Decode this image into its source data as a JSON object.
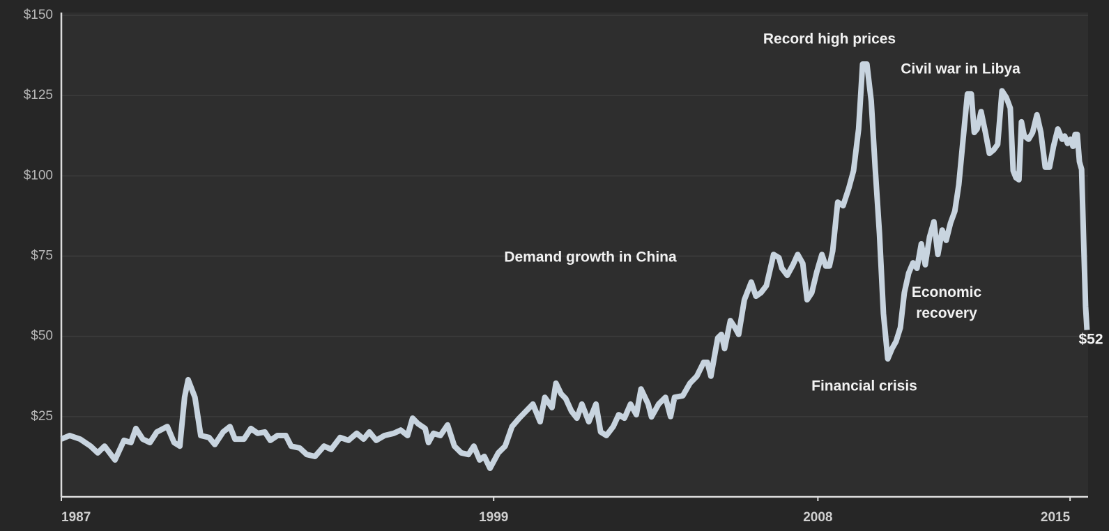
{
  "chart_data": {
    "type": "line",
    "x": [
      1987.0,
      1987.23,
      1987.52,
      1987.81,
      1988.01,
      1988.2,
      1988.49,
      1988.74,
      1988.93,
      1989.07,
      1989.26,
      1989.46,
      1989.65,
      1989.94,
      1990.13,
      1990.29,
      1990.42,
      1990.52,
      1990.71,
      1990.87,
      1991.1,
      1991.26,
      1991.49,
      1991.68,
      1991.82,
      1992.07,
      1992.26,
      1992.45,
      1992.65,
      1992.8,
      1993.0,
      1993.23,
      1993.38,
      1993.62,
      1993.81,
      1994.04,
      1994.29,
      1994.49,
      1994.74,
      1994.97,
      1995.2,
      1995.39,
      1995.55,
      1995.74,
      1995.97,
      1996.23,
      1996.42,
      1996.61,
      1996.75,
      1996.9,
      1997.1,
      1997.19,
      1997.33,
      1997.52,
      1997.72,
      1997.91,
      1998.1,
      1998.3,
      1998.45,
      1998.61,
      1998.74,
      1998.9,
      1999.13,
      1999.32,
      1999.51,
      1999.71,
      1999.9,
      2000.09,
      2000.29,
      2000.42,
      2000.62,
      2000.73,
      2000.87,
      2001.0,
      2001.16,
      2001.31,
      2001.45,
      2001.64,
      2001.84,
      2001.97,
      2002.13,
      2002.32,
      2002.47,
      2002.63,
      2002.8,
      2002.96,
      2003.09,
      2003.29,
      2003.38,
      2003.58,
      2003.77,
      2003.91,
      2004.02,
      2004.25,
      2004.45,
      2004.64,
      2004.83,
      2004.93,
      2005.03,
      2005.22,
      2005.32,
      2005.41,
      2005.57,
      2005.7,
      2005.8,
      2005.96,
      2006.15,
      2006.28,
      2006.42,
      2006.57,
      2006.77,
      2006.92,
      2007.0,
      2007.15,
      2007.31,
      2007.44,
      2007.58,
      2007.7,
      2007.83,
      2007.97,
      2008.11,
      2008.22,
      2008.32,
      2008.41,
      2008.55,
      2008.7,
      2008.86,
      2008.99,
      2009.13,
      2009.24,
      2009.36,
      2009.48,
      2009.59,
      2009.71,
      2009.82,
      2009.94,
      2010.06,
      2010.17,
      2010.29,
      2010.4,
      2010.52,
      2010.64,
      2010.75,
      2010.87,
      2010.98,
      2011.1,
      2011.22,
      2011.33,
      2011.45,
      2011.56,
      2011.68,
      2011.8,
      2011.91,
      2012.03,
      2012.15,
      2012.26,
      2012.34,
      2012.42,
      2012.53,
      2012.65,
      2012.76,
      2012.88,
      2012.99,
      2013.11,
      2013.23,
      2013.34,
      2013.42,
      2013.5,
      2013.58,
      2013.65,
      2013.73,
      2013.85,
      2013.96,
      2014.08,
      2014.19,
      2014.31,
      2014.43,
      2014.54,
      2014.66,
      2014.78,
      2014.85,
      2014.93,
      2015.01,
      2015.08,
      2015.14,
      2015.2,
      2015.26,
      2015.32,
      2015.37,
      2015.43,
      2015.47
    ],
    "values": [
      18.0,
      19.1,
      18.0,
      15.8,
      13.7,
      15.8,
      11.5,
      17.6,
      16.9,
      21.3,
      18.0,
      16.9,
      20.2,
      21.9,
      16.9,
      15.8,
      31.0,
      36.5,
      31.0,
      19.1,
      18.5,
      16.3,
      20.2,
      21.9,
      18.0,
      18.0,
      21.3,
      19.8,
      20.2,
      17.6,
      19.1,
      19.1,
      15.8,
      15.2,
      13.2,
      12.6,
      15.8,
      14.8,
      18.5,
      17.6,
      19.8,
      18.0,
      20.2,
      17.6,
      19.1,
      19.8,
      20.8,
      19.1,
      24.5,
      22.8,
      21.3,
      16.9,
      19.8,
      19.1,
      22.4,
      15.8,
      13.7,
      13.2,
      15.8,
      11.5,
      12.6,
      8.9,
      13.7,
      15.8,
      21.9,
      24.5,
      26.7,
      28.9,
      23.4,
      31.0,
      27.8,
      35.4,
      32.1,
      30.6,
      26.7,
      24.5,
      28.9,
      23.4,
      28.9,
      20.2,
      19.1,
      21.9,
      25.6,
      24.5,
      28.9,
      25.6,
      33.6,
      28.9,
      24.9,
      28.9,
      31.0,
      25.0,
      31.0,
      31.5,
      35.4,
      37.6,
      41.9,
      41.9,
      37.6,
      49.5,
      50.6,
      46.2,
      54.9,
      52.7,
      50.6,
      61.4,
      66.9,
      62.5,
      63.6,
      65.8,
      75.5,
      74.5,
      71.2,
      69.0,
      72.3,
      75.5,
      72.7,
      61.4,
      63.6,
      70.1,
      75.5,
      71.9,
      71.9,
      76.6,
      91.8,
      90.7,
      96.2,
      101.6,
      114.6,
      134.8,
      134.8,
      123.3,
      102.7,
      82.0,
      57.1,
      43.0,
      46.2,
      48.4,
      52.7,
      63.6,
      69.7,
      72.9,
      71.2,
      78.8,
      72.3,
      81.0,
      85.7,
      75.5,
      83.1,
      79.9,
      85.3,
      89.0,
      97.2,
      111.4,
      125.5,
      125.5,
      113.5,
      114.6,
      120.0,
      113.5,
      107.0,
      108.1,
      109.8,
      126.5,
      124.4,
      121.1,
      101.6,
      99.4,
      98.8,
      116.8,
      112.4,
      111.4,
      113.5,
      119.0,
      113.5,
      102.7,
      102.7,
      109.2,
      114.6,
      111.4,
      112.4,
      110.1,
      111.4,
      109.2,
      112.9,
      112.9,
      104.4,
      102.0,
      82.0,
      59.3,
      52
    ],
    "color": "#c8d4df",
    "xlim": [
      1987,
      2015.5
    ],
    "xticks": [
      1987,
      1999,
      2008,
      2015
    ],
    "ylim": [
      0,
      150
    ],
    "yticks": [
      {
        "value": 25,
        "label": "$25"
      },
      {
        "value": 50,
        "label": "$50"
      },
      {
        "value": 75,
        "label": "$75"
      },
      {
        "value": 100,
        "label": "$100"
      },
      {
        "value": 125,
        "label": "$125"
      },
      {
        "value": 150,
        "label": "$150"
      }
    ],
    "grid": true,
    "annotations": [
      "Record high prices",
      "Civil war in Libya",
      "Demand growth in China",
      "Economic recovery",
      "Financial crisis",
      "$52"
    ]
  }
}
